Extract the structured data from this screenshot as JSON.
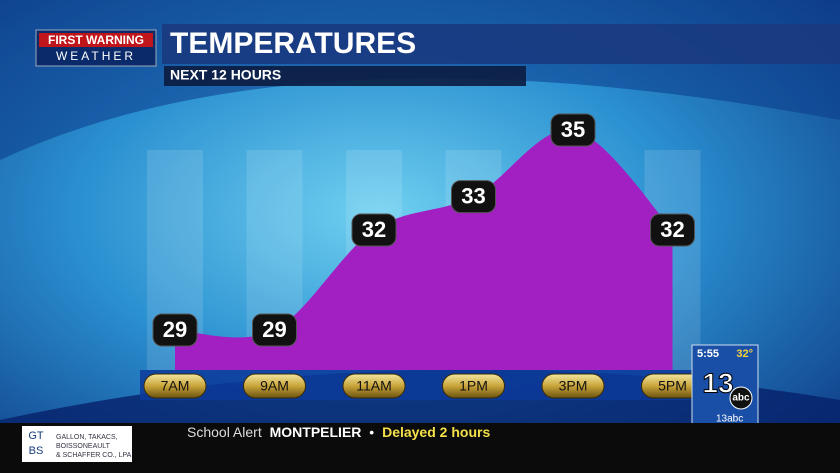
{
  "logo": {
    "line1": "FIRST WARNING",
    "line2": "WEATHER"
  },
  "chart_data": {
    "type": "area",
    "title": "TEMPERATURES",
    "subtitle": "NEXT 12 HOURS",
    "categories": [
      "7AM",
      "9AM",
      "11AM",
      "1PM",
      "3PM",
      "5PM"
    ],
    "values": [
      29,
      29,
      32,
      33,
      35,
      32
    ],
    "color": "#a21fc2"
  },
  "station_bug": {
    "time": "5:55",
    "temperature": "32°",
    "channel": "13",
    "network": "abc",
    "social": "13abc"
  },
  "ticker": {
    "label": "School Alert",
    "location": "MONTPELIER",
    "separator": "•",
    "status": "Delayed 2 hours"
  },
  "sponsor": {
    "logo_top": "GT",
    "logo_bottom": "BS",
    "lines": [
      "GALLON, TAKACS,",
      "BOISSONEAULT",
      "& SCHAFFER CO., LPA"
    ]
  }
}
